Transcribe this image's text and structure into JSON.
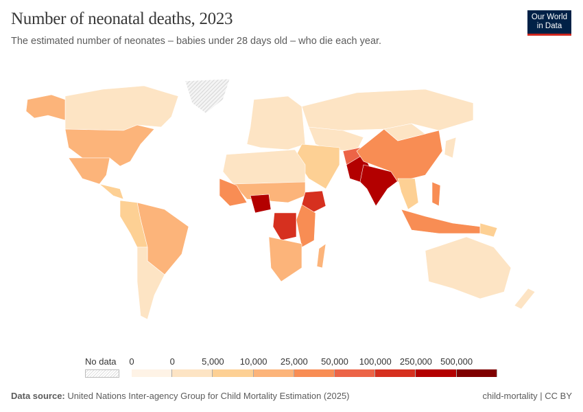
{
  "header": {
    "title": "Number of neonatal deaths, 2023",
    "subtitle": "The estimated number of neonates – babies under 28 days old – who die each year.",
    "logo": "Our World in Data"
  },
  "legend": {
    "no_data_label": "No data",
    "labels": [
      "0",
      "0",
      "5,000",
      "10,000",
      "25,000",
      "50,000",
      "100,000",
      "250,000",
      "500,000"
    ],
    "colors": [
      "#fef3e6",
      "#fde4c4",
      "#fdd094",
      "#fcb47a",
      "#f88d54",
      "#ec6447",
      "#d6301f",
      "#b30000",
      "#7f0000"
    ],
    "no_data_color": "#e0e0e0"
  },
  "map": {
    "regions": [
      {
        "name": "canada",
        "bin": 1
      },
      {
        "name": "usa",
        "bin": 3
      },
      {
        "name": "mexico",
        "bin": 3
      },
      {
        "name": "alaska",
        "bin": 3
      },
      {
        "name": "greenland",
        "bin": -1
      },
      {
        "name": "central-america",
        "bin": 2
      },
      {
        "name": "brazil",
        "bin": 3
      },
      {
        "name": "south-america-west",
        "bin": 2
      },
      {
        "name": "argentina-chile",
        "bin": 1
      },
      {
        "name": "europe",
        "bin": 1
      },
      {
        "name": "russia",
        "bin": 1
      },
      {
        "name": "central-asia",
        "bin": 1
      },
      {
        "name": "middle-east",
        "bin": 2
      },
      {
        "name": "north-africa",
        "bin": 1
      },
      {
        "name": "sahel",
        "bin": 3
      },
      {
        "name": "west-africa",
        "bin": 4
      },
      {
        "name": "nigeria",
        "bin": 7
      },
      {
        "name": "dr-congo",
        "bin": 6
      },
      {
        "name": "ethiopia",
        "bin": 6
      },
      {
        "name": "east-africa",
        "bin": 4
      },
      {
        "name": "southern-africa",
        "bin": 3
      },
      {
        "name": "madagascar",
        "bin": 3
      },
      {
        "name": "afghanistan",
        "bin": 5
      },
      {
        "name": "pakistan",
        "bin": 7
      },
      {
        "name": "india",
        "bin": 7
      },
      {
        "name": "china",
        "bin": 4
      },
      {
        "name": "mongolia",
        "bin": 1
      },
      {
        "name": "southeast-asia",
        "bin": 2
      },
      {
        "name": "indonesia",
        "bin": 4
      },
      {
        "name": "philippines",
        "bin": 4
      },
      {
        "name": "japan",
        "bin": 1
      },
      {
        "name": "australia",
        "bin": 1
      },
      {
        "name": "new-zealand",
        "bin": 1
      },
      {
        "name": "papua-new-guinea",
        "bin": 2
      }
    ]
  },
  "footer": {
    "source_label": "Data source:",
    "source": "United Nations Inter-agency Group for Child Mortality Estimation (2025)",
    "license": "child-mortality | CC BY"
  }
}
